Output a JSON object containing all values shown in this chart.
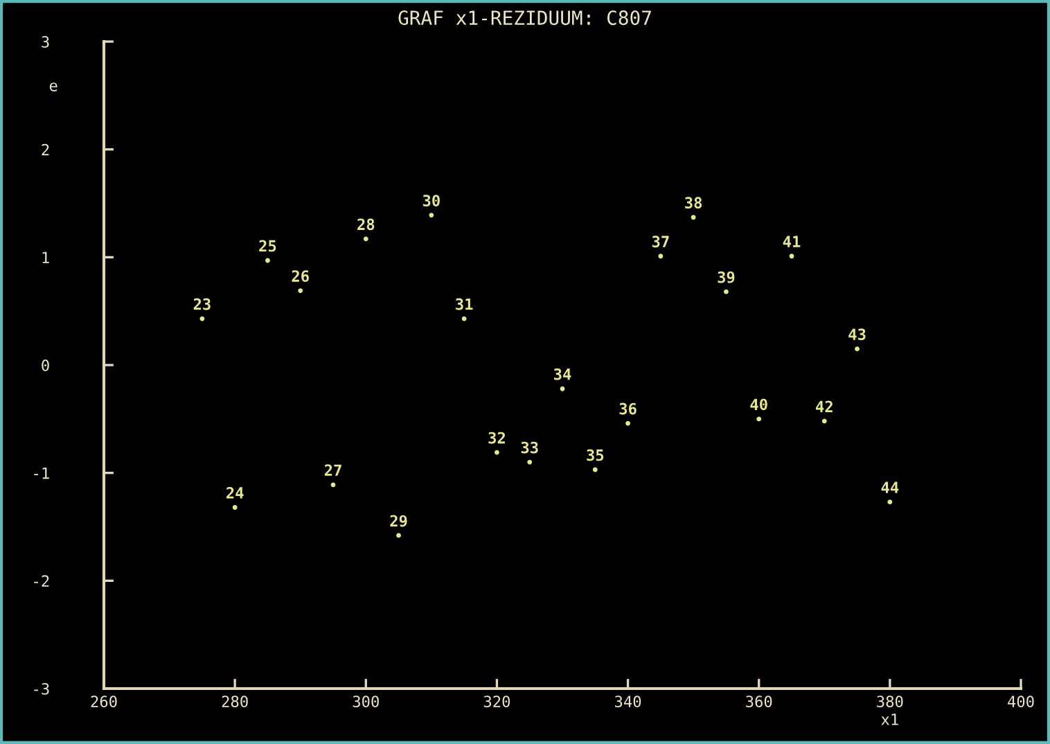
{
  "chart_data": {
    "type": "scatter",
    "title": "GRAF x1-REZIDUUM: C807",
    "xlabel": "x1",
    "ylabel": "e",
    "x": [
      275,
      280,
      285,
      290,
      295,
      300,
      305,
      310,
      315,
      320,
      325,
      330,
      335,
      340,
      345,
      350,
      355,
      360,
      365,
      370,
      375,
      380
    ],
    "series": [
      {
        "color": "#e8e890",
        "values": [
          0.43,
          -1.32,
          0.97,
          0.69,
          -1.11,
          1.17,
          -1.58,
          1.39,
          0.43,
          -0.81,
          -0.9,
          -0.22,
          -0.97,
          -0.54,
          1.01,
          1.37,
          0.68,
          -0.5,
          1.01,
          -0.52,
          0.15,
          -1.27
        ]
      }
    ],
    "annotations": [
      {
        "text": "23",
        "x": 275,
        "y": 0.43
      },
      {
        "text": "24",
        "x": 280,
        "y": -1.32
      },
      {
        "text": "25",
        "x": 285,
        "y": 0.97
      },
      {
        "text": "26",
        "x": 290,
        "y": 0.69
      },
      {
        "text": "27",
        "x": 295,
        "y": -1.11
      },
      {
        "text": "28",
        "x": 300,
        "y": 1.17
      },
      {
        "text": "29",
        "x": 305,
        "y": -1.58
      },
      {
        "text": "30",
        "x": 310,
        "y": 1.39
      },
      {
        "text": "31",
        "x": 315,
        "y": 0.43
      },
      {
        "text": "32",
        "x": 320,
        "y": -0.81
      },
      {
        "text": "33",
        "x": 325,
        "y": -0.9
      },
      {
        "text": "34",
        "x": 330,
        "y": -0.22
      },
      {
        "text": "35",
        "x": 335,
        "y": -0.97
      },
      {
        "text": "36",
        "x": 340,
        "y": -0.54
      },
      {
        "text": "37",
        "x": 345,
        "y": 1.01
      },
      {
        "text": "38",
        "x": 350,
        "y": 1.37
      },
      {
        "text": "39",
        "x": 355,
        "y": 0.68
      },
      {
        "text": "40",
        "x": 360,
        "y": -0.5
      },
      {
        "text": "41",
        "x": 365,
        "y": 1.01
      },
      {
        "text": "42",
        "x": 370,
        "y": -0.52
      },
      {
        "text": "43",
        "x": 375,
        "y": 0.15
      },
      {
        "text": "44",
        "x": 380,
        "y": -1.27
      }
    ],
    "marker": "circle",
    "xlim": [
      260,
      400
    ],
    "xticks": [
      260,
      280,
      300,
      320,
      340,
      360,
      380,
      400
    ],
    "ylim": [
      -3,
      3
    ],
    "yticks": [
      -3,
      -2,
      -1,
      0,
      1,
      2,
      3
    ]
  }
}
